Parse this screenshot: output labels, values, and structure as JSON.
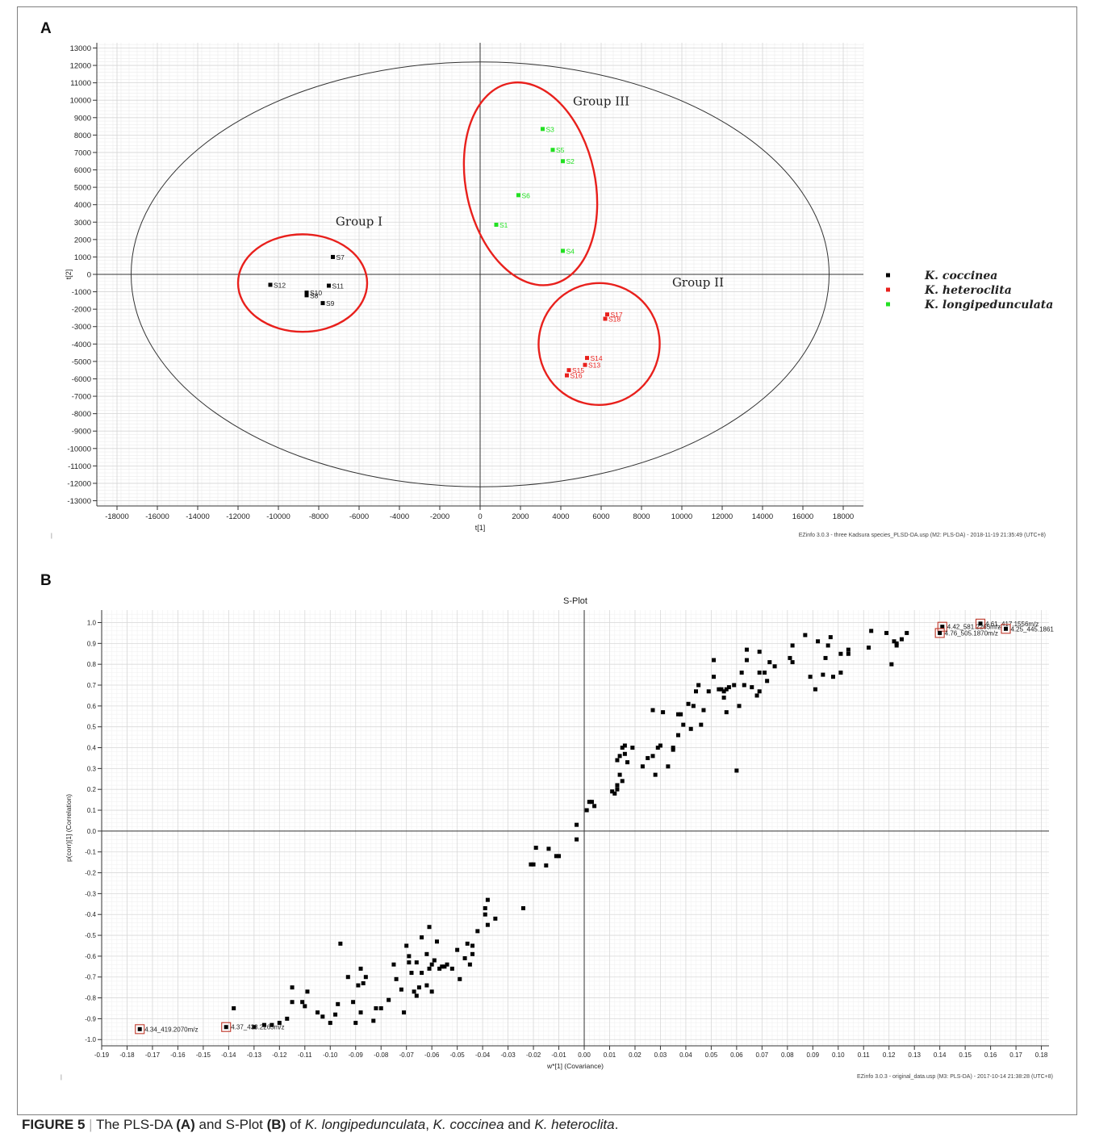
{
  "panelA": {
    "label": "A",
    "footer": "EZinfo 3.0.3 - three Kadsura species_PLSD-DA.usp (M2: PLS-DA) - 2018-11-19 21:35:49 (UTC+8)",
    "chart_data": {
      "type": "scatter",
      "xlabel": "t[1]",
      "ylabel": "t[2]",
      "xlim": [
        -19000,
        19000
      ],
      "ylim": [
        -13300,
        13300
      ],
      "xticks": [
        -18000,
        -16000,
        -14000,
        -12000,
        -10000,
        -8000,
        -6000,
        -4000,
        -2000,
        0,
        2000,
        4000,
        6000,
        8000,
        10000,
        12000,
        14000,
        16000,
        18000
      ],
      "yticks": [
        -13000,
        -12000,
        -11000,
        -10000,
        -9000,
        -8000,
        -7000,
        -6000,
        -5000,
        -4000,
        -3000,
        -2000,
        -1000,
        0,
        1000,
        2000,
        3000,
        4000,
        5000,
        6000,
        7000,
        8000,
        9000,
        10000,
        11000,
        12000,
        13000
      ],
      "grid": true,
      "legend_position": "right",
      "hotelling_ellipse": {
        "rx": 17300,
        "ry": 12200
      },
      "series": [
        {
          "name": "K. coccinea",
          "color": "#000000",
          "points": [
            {
              "label": "S7",
              "x": -7300,
              "y": 1000
            },
            {
              "label": "S12",
              "x": -10400,
              "y": -600
            },
            {
              "label": "S11",
              "x": -7500,
              "y": -650
            },
            {
              "label": "S10",
              "x": -8600,
              "y": -1050
            },
            {
              "label": "S8",
              "x": -8600,
              "y": -1200
            },
            {
              "label": "S9",
              "x": -7800,
              "y": -1650
            }
          ]
        },
        {
          "name": "K. heteroclita",
          "color": "#e8201c",
          "points": [
            {
              "label": "S17",
              "x": 6300,
              "y": -2300
            },
            {
              "label": "S18",
              "x": 6200,
              "y": -2550
            },
            {
              "label": "S14",
              "x": 5300,
              "y": -4800
            },
            {
              "label": "S13",
              "x": 5200,
              "y": -5200
            },
            {
              "label": "S15",
              "x": 4400,
              "y": -5500
            },
            {
              "label": "S16",
              "x": 4300,
              "y": -5800
            }
          ]
        },
        {
          "name": "K. longipedunculata",
          "color": "#22e022",
          "points": [
            {
              "label": "S3",
              "x": 3100,
              "y": 8350
            },
            {
              "label": "S5",
              "x": 3600,
              "y": 7150
            },
            {
              "label": "S2",
              "x": 4100,
              "y": 6500
            },
            {
              "label": "S6",
              "x": 1900,
              "y": 4550
            },
            {
              "label": "S1",
              "x": 800,
              "y": 2850
            },
            {
              "label": "S4",
              "x": 4100,
              "y": 1350
            }
          ]
        }
      ],
      "groups": [
        {
          "label": "Group I",
          "cx": -8800,
          "cy": -500,
          "rx": 3200,
          "ry": 2800,
          "rot": 0,
          "label_x": -6000,
          "label_y": 2800
        },
        {
          "label": "Group II",
          "cx": 5900,
          "cy": -4000,
          "rx": 3000,
          "ry": 3500,
          "rot": 15,
          "label_x": 10800,
          "label_y": -700
        },
        {
          "label": "Group III",
          "cx": 2500,
          "cy": 5200,
          "rx": 3200,
          "ry": 5900,
          "rot": -12,
          "label_x": 6000,
          "label_y": 9700
        }
      ]
    }
  },
  "panelB": {
    "label": "B",
    "footer": "EZinfo 3.0.3 - original_data.usp (M3: PLS-DA) - 2017-10-14 21:38:28 (UTC+8)",
    "chart_data": {
      "type": "scatter",
      "title": "S-Plot",
      "xlabel": "w*[1] (Covariance)",
      "ylabel": "p(corr)[1] (Correlation)",
      "xlim": [
        -0.19,
        0.183
      ],
      "ylim": [
        -1.03,
        1.06
      ],
      "xticks": [
        -0.19,
        -0.18,
        -0.17,
        -0.16,
        -0.15,
        -0.14,
        -0.13,
        -0.12,
        -0.11,
        -0.1,
        -0.09,
        -0.08,
        -0.07,
        -0.06,
        -0.05,
        -0.04,
        -0.03,
        -0.02,
        -0.01,
        0.0,
        0.01,
        0.02,
        0.03,
        0.04,
        0.05,
        0.06,
        0.07,
        0.08,
        0.09,
        0.1,
        0.11,
        0.12,
        0.13,
        0.14,
        0.15,
        0.16,
        0.17,
        0.18
      ],
      "yticks": [
        -1.0,
        -0.9,
        -0.8,
        -0.7,
        -0.6,
        -0.5,
        -0.4,
        -0.3,
        -0.2,
        -0.1,
        0.0,
        0.1,
        0.2,
        0.3,
        0.4,
        0.5,
        0.6,
        0.7,
        0.8,
        0.9,
        1.0
      ],
      "grid": true,
      "highlighted": [
        {
          "label": "4.34_419.2070m/z",
          "x": -0.175,
          "y": -0.95,
          "side": "right"
        },
        {
          "label": "4.37_433.2265m/z",
          "x": -0.141,
          "y": -0.94,
          "side": "right"
        },
        {
          "label": "4.42_581.2265m/z",
          "x": 0.141,
          "y": 0.98,
          "side": "right"
        },
        {
          "label": "4.76_505.1870m/z",
          "x": 0.14,
          "y": 0.95,
          "side": "right"
        },
        {
          "label": "4.61_417.1556m/z",
          "x": 0.156,
          "y": 0.995,
          "side": "right"
        },
        {
          "label": "4.25_445.1861",
          "x": 0.166,
          "y": 0.97,
          "side": "right"
        }
      ],
      "points": [
        [
          -0.138,
          -0.85
        ],
        [
          -0.13,
          -0.94
        ],
        [
          -0.126,
          -0.93
        ],
        [
          -0.123,
          -0.93
        ],
        [
          -0.12,
          -0.92
        ],
        [
          -0.117,
          -0.9
        ],
        [
          -0.115,
          -0.82
        ],
        [
          -0.115,
          -0.75
        ],
        [
          -0.111,
          -0.82
        ],
        [
          -0.11,
          -0.84
        ],
        [
          -0.109,
          -0.77
        ],
        [
          -0.105,
          -0.87
        ],
        [
          -0.103,
          -0.89
        ],
        [
          -0.1,
          -0.92
        ],
        [
          -0.098,
          -0.88
        ],
        [
          -0.097,
          -0.83
        ],
        [
          -0.096,
          -0.54
        ],
        [
          -0.093,
          -0.7
        ],
        [
          -0.091,
          -0.82
        ],
        [
          -0.09,
          -0.92
        ],
        [
          -0.089,
          -0.74
        ],
        [
          -0.088,
          -0.66
        ],
        [
          -0.088,
          -0.87
        ],
        [
          -0.087,
          -0.73
        ],
        [
          -0.086,
          -0.7
        ],
        [
          -0.083,
          -0.91
        ],
        [
          -0.082,
          -0.85
        ],
        [
          -0.08,
          -0.85
        ],
        [
          -0.077,
          -0.81
        ],
        [
          -0.075,
          -0.64
        ],
        [
          -0.074,
          -0.71
        ],
        [
          -0.072,
          -0.76
        ],
        [
          -0.071,
          -0.87
        ],
        [
          -0.07,
          -0.55
        ],
        [
          -0.069,
          -0.6
        ],
        [
          -0.069,
          -0.63
        ],
        [
          -0.068,
          -0.68
        ],
        [
          -0.067,
          -0.77
        ],
        [
          -0.066,
          -0.79
        ],
        [
          -0.066,
          -0.63
        ],
        [
          -0.065,
          -0.75
        ],
        [
          -0.064,
          -0.51
        ],
        [
          -0.064,
          -0.68
        ],
        [
          -0.062,
          -0.59
        ],
        [
          -0.062,
          -0.74
        ],
        [
          -0.061,
          -0.66
        ],
        [
          -0.061,
          -0.46
        ],
        [
          -0.06,
          -0.64
        ],
        [
          -0.06,
          -0.77
        ],
        [
          -0.059,
          -0.62
        ],
        [
          -0.058,
          -0.53
        ],
        [
          -0.057,
          -0.66
        ],
        [
          -0.056,
          -0.65
        ],
        [
          -0.055,
          -0.65
        ],
        [
          -0.054,
          -0.64
        ],
        [
          -0.052,
          -0.66
        ],
        [
          -0.05,
          -0.57
        ],
        [
          -0.049,
          -0.71
        ],
        [
          -0.047,
          -0.61
        ],
        [
          -0.046,
          -0.54
        ],
        [
          -0.045,
          -0.64
        ],
        [
          -0.044,
          -0.59
        ],
        [
          -0.044,
          -0.55
        ],
        [
          -0.042,
          -0.48
        ],
        [
          -0.039,
          -0.37
        ],
        [
          -0.039,
          -0.4
        ],
        [
          -0.038,
          -0.45
        ],
        [
          -0.038,
          -0.33
        ],
        [
          -0.035,
          -0.42
        ],
        [
          -0.024,
          -0.37
        ],
        [
          -0.021,
          -0.16
        ],
        [
          -0.02,
          -0.16
        ],
        [
          -0.019,
          -0.08
        ],
        [
          -0.015,
          -0.165
        ],
        [
          -0.014,
          -0.085
        ],
        [
          -0.011,
          -0.12
        ],
        [
          -0.01,
          -0.12
        ],
        [
          -0.003,
          -0.04
        ],
        [
          -0.003,
          0.03
        ],
        [
          0.001,
          0.1
        ],
        [
          0.002,
          0.14
        ],
        [
          0.003,
          0.14
        ],
        [
          0.004,
          0.12
        ],
        [
          0.011,
          0.19
        ],
        [
          0.012,
          0.18
        ],
        [
          0.013,
          0.2
        ],
        [
          0.013,
          0.22
        ],
        [
          0.013,
          0.34
        ],
        [
          0.014,
          0.36
        ],
        [
          0.014,
          0.27
        ],
        [
          0.015,
          0.24
        ],
        [
          0.015,
          0.4
        ],
        [
          0.016,
          0.41
        ],
        [
          0.016,
          0.37
        ],
        [
          0.017,
          0.33
        ],
        [
          0.019,
          0.4
        ],
        [
          0.023,
          0.31
        ],
        [
          0.025,
          0.35
        ],
        [
          0.027,
          0.36
        ],
        [
          0.027,
          0.58
        ],
        [
          0.028,
          0.27
        ],
        [
          0.029,
          0.4
        ],
        [
          0.03,
          0.41
        ],
        [
          0.031,
          0.57
        ],
        [
          0.033,
          0.31
        ],
        [
          0.035,
          0.39
        ],
        [
          0.035,
          0.4
        ],
        [
          0.037,
          0.46
        ],
        [
          0.037,
          0.56
        ],
        [
          0.038,
          0.56
        ],
        [
          0.039,
          0.51
        ],
        [
          0.041,
          0.61
        ],
        [
          0.042,
          0.49
        ],
        [
          0.043,
          0.6
        ],
        [
          0.044,
          0.67
        ],
        [
          0.045,
          0.7
        ],
        [
          0.046,
          0.51
        ],
        [
          0.047,
          0.58
        ],
        [
          0.049,
          0.67
        ],
        [
          0.051,
          0.74
        ],
        [
          0.051,
          0.82
        ],
        [
          0.053,
          0.68
        ],
        [
          0.054,
          0.68
        ],
        [
          0.055,
          0.64
        ],
        [
          0.055,
          0.67
        ],
        [
          0.056,
          0.68
        ],
        [
          0.056,
          0.57
        ],
        [
          0.057,
          0.69
        ],
        [
          0.059,
          0.7
        ],
        [
          0.06,
          0.29
        ],
        [
          0.061,
          0.6
        ],
        [
          0.062,
          0.76
        ],
        [
          0.063,
          0.7
        ],
        [
          0.064,
          0.82
        ],
        [
          0.064,
          0.87
        ],
        [
          0.066,
          0.69
        ],
        [
          0.068,
          0.65
        ],
        [
          0.069,
          0.67
        ],
        [
          0.069,
          0.76
        ],
        [
          0.069,
          0.86
        ],
        [
          0.071,
          0.76
        ],
        [
          0.072,
          0.72
        ],
        [
          0.073,
          0.81
        ],
        [
          0.075,
          0.79
        ],
        [
          0.081,
          0.83
        ],
        [
          0.082,
          0.81
        ],
        [
          0.082,
          0.89
        ],
        [
          0.087,
          0.94
        ],
        [
          0.089,
          0.74
        ],
        [
          0.091,
          0.68
        ],
        [
          0.092,
          0.91
        ],
        [
          0.094,
          0.75
        ],
        [
          0.095,
          0.83
        ],
        [
          0.096,
          0.89
        ],
        [
          0.097,
          0.93
        ],
        [
          0.098,
          0.74
        ],
        [
          0.101,
          0.85
        ],
        [
          0.101,
          0.76
        ],
        [
          0.104,
          0.87
        ],
        [
          0.104,
          0.85
        ],
        [
          0.112,
          0.88
        ],
        [
          0.113,
          0.96
        ],
        [
          0.119,
          0.95
        ],
        [
          0.121,
          0.8
        ],
        [
          0.122,
          0.91
        ],
        [
          0.123,
          0.89
        ],
        [
          0.123,
          0.9
        ],
        [
          0.125,
          0.92
        ],
        [
          0.127,
          0.95
        ]
      ]
    }
  },
  "caption": {
    "figure_label": "FIGURE 5",
    "separator": " | ",
    "parts": [
      {
        "text": "The PLS-DA ",
        "style": "normal"
      },
      {
        "text": "(A)",
        "style": "bold"
      },
      {
        "text": " and S-Plot ",
        "style": "normal"
      },
      {
        "text": "(B)",
        "style": "bold"
      },
      {
        "text": " of ",
        "style": "normal"
      },
      {
        "text": "K. longipedunculata",
        "style": "italic"
      },
      {
        "text": ", ",
        "style": "normal"
      },
      {
        "text": "K. coccinea",
        "style": "italic"
      },
      {
        "text": " and ",
        "style": "normal"
      },
      {
        "text": "K. heteroclita",
        "style": "italic"
      },
      {
        "text": ".",
        "style": "normal"
      }
    ]
  }
}
